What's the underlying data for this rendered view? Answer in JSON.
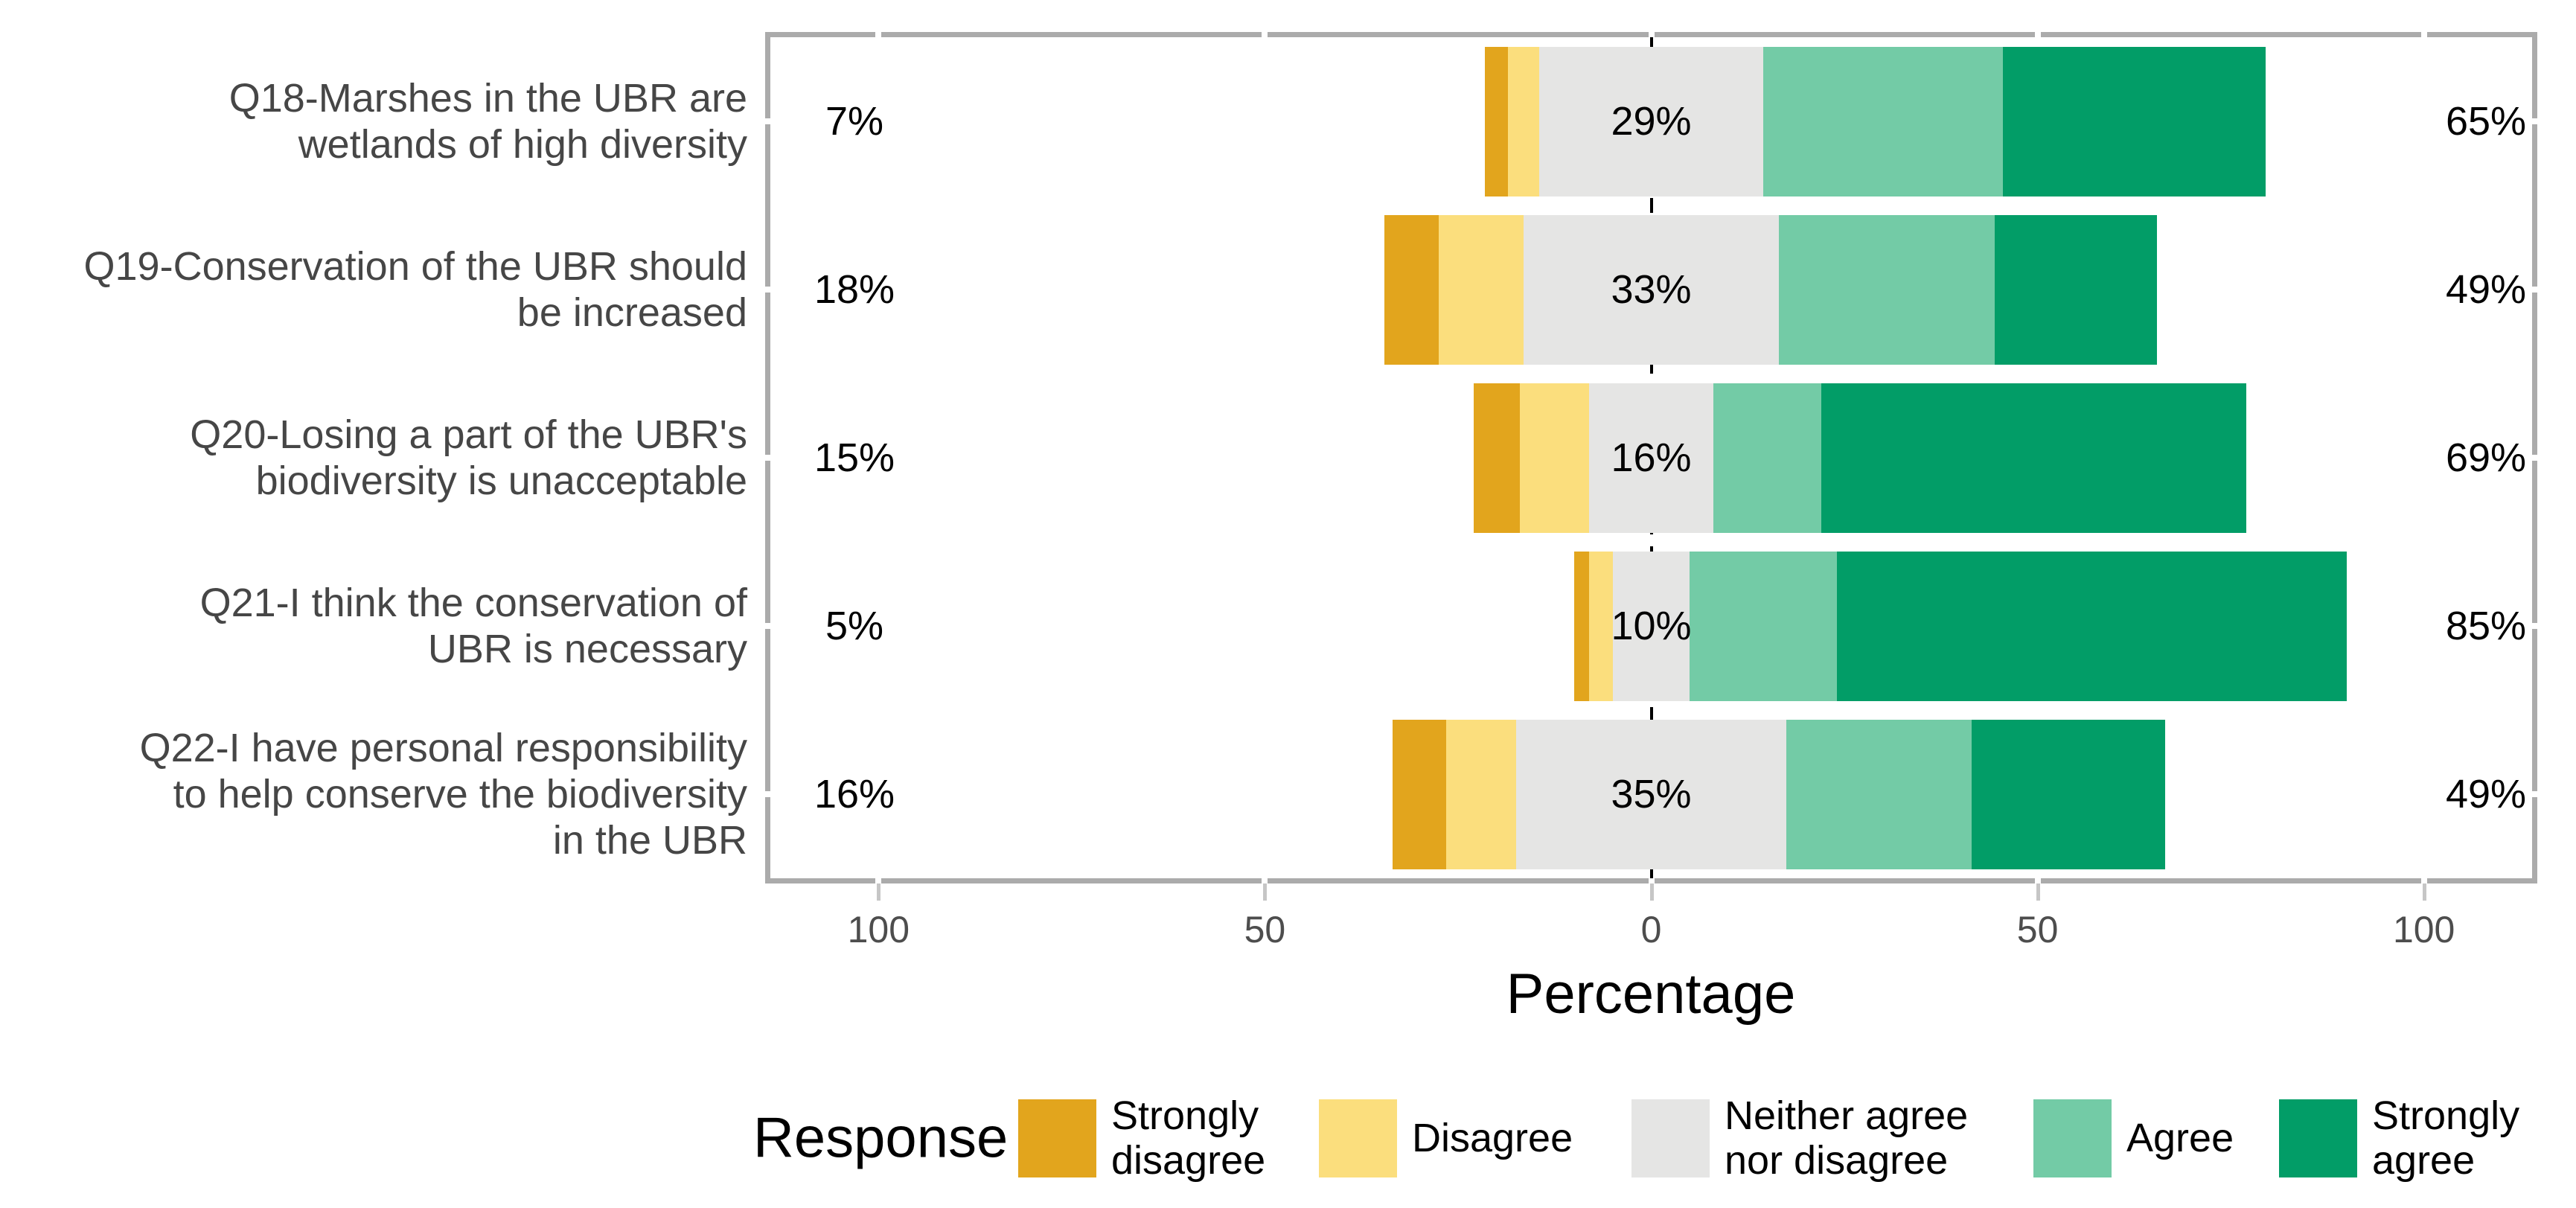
{
  "chart_data": {
    "type": "bar",
    "orientation": "horizontal",
    "stacked": true,
    "diverging": true,
    "xlabel": "Percentage",
    "x_ticks": [
      "100",
      "50",
      "0",
      "50",
      "100"
    ],
    "x_tick_values": [
      -100,
      -50,
      0,
      50,
      100
    ],
    "xlim": [
      -114,
      114
    ],
    "zero_line": "dashed-black",
    "grid": false,
    "legend_title": "Response",
    "legend_position": "bottom",
    "responses": [
      {
        "key": "strongly_disagree",
        "label": "Strongly disagree",
        "legend_lines": [
          "Strongly",
          "disagree"
        ],
        "color": "#E2A51D"
      },
      {
        "key": "disagree",
        "label": "Disagree",
        "legend_lines": [
          "Disagree"
        ],
        "color": "#FBDE7D"
      },
      {
        "key": "neither",
        "label": "Neither agree nor disagree",
        "legend_lines": [
          "Neither agree",
          "nor disagree"
        ],
        "color": "#E5E5E4"
      },
      {
        "key": "agree",
        "label": "Agree",
        "legend_lines": [
          "Agree"
        ],
        "color": "#73CBA6"
      },
      {
        "key": "strongly_agree",
        "label": "Strongly agree",
        "legend_lines": [
          "Strongly",
          "agree"
        ],
        "color": "#029D67"
      }
    ],
    "questions": [
      {
        "label": "Q18-Marshes in the UBR are wetlands of high diversity",
        "label_lines": [
          "Q18-Marshes in the UBR are",
          "wetlands of high diversity"
        ],
        "values": [
          3,
          4,
          29,
          31,
          34
        ],
        "pct_left": "7%",
        "pct_center": "29%",
        "pct_right": "65%"
      },
      {
        "label": "Q19-Conservation of the UBR should be increased",
        "label_lines": [
          "Q19-Conservation of the UBR should",
          "be increased"
        ],
        "values": [
          7,
          11,
          33,
          28,
          21
        ],
        "pct_left": "18%",
        "pct_center": "33%",
        "pct_right": "49%"
      },
      {
        "label": "Q20-Losing a part of the UBR's biodiversity is unacceptable",
        "label_lines": [
          "Q20-Losing a part of the UBR's",
          "biodiversity is unacceptable"
        ],
        "values": [
          6,
          9,
          16,
          14,
          55
        ],
        "pct_left": "15%",
        "pct_center": "16%",
        "pct_right": "69%"
      },
      {
        "label": "Q21-I think the conservation of UBR is necessary",
        "label_lines": [
          "Q21-I think the conservation of",
          "UBR is necessary"
        ],
        "values": [
          2,
          3,
          10,
          19,
          66
        ],
        "pct_left": "5%",
        "pct_center": "10%",
        "pct_right": "85%"
      },
      {
        "label": "Q22-I have personal responsibility to help conserve the biodiversity in the UBR",
        "label_lines": [
          "Q22-I have personal responsibility",
          "to help conserve the biodiversity",
          "in the UBR"
        ],
        "values": [
          7,
          9,
          35,
          24,
          25
        ],
        "pct_left": "16%",
        "pct_center": "35%",
        "pct_right": "49%"
      }
    ]
  },
  "colors": {
    "background": "#FFFFFF",
    "panel_border": "#ABABAB",
    "tick_mark": "#C6C6C6",
    "tick_label": "#4D4D4D",
    "question_label": "#464646",
    "pct_label": "#000000",
    "zero_line": "#000000"
  }
}
